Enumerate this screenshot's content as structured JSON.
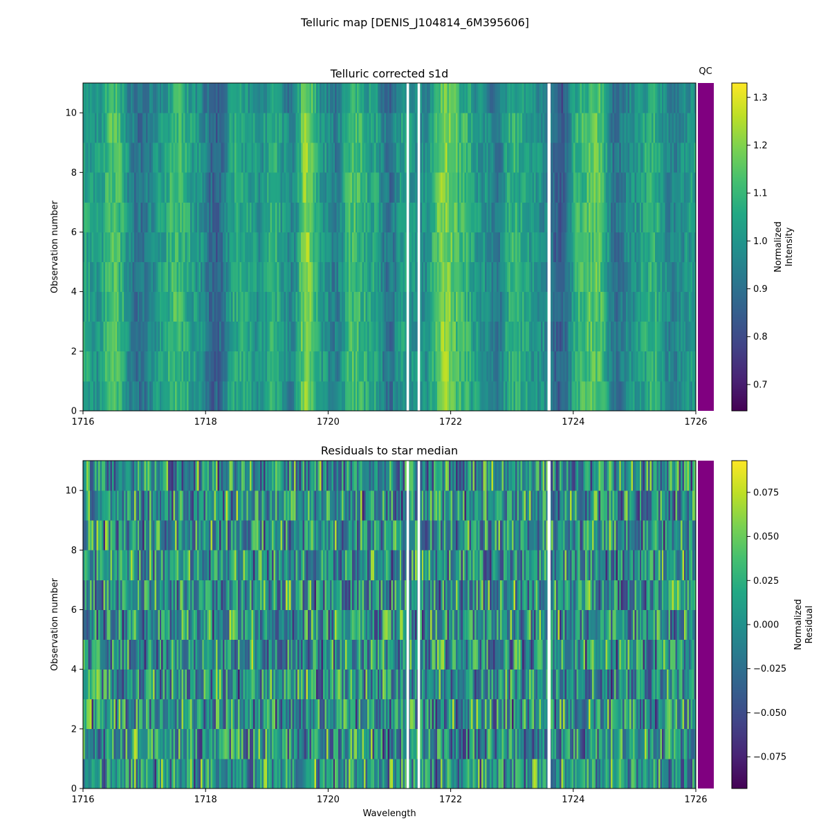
{
  "figure": {
    "title": "Telluric map [DENIS_J104814_6M395606]"
  },
  "chart_data": [
    {
      "type": "heatmap",
      "title": "Telluric corrected s1d",
      "xlabel": "",
      "ylabel": "Observation number",
      "xlim": [
        1716,
        1726
      ],
      "ylim": [
        0,
        11
      ],
      "xticks": [
        "1716",
        "1718",
        "1720",
        "1722",
        "1724",
        "1726"
      ],
      "yticks": [
        "0",
        "2",
        "4",
        "6",
        "8",
        "10"
      ],
      "rows": 11,
      "colorbar": {
        "label_lines": [
          "Normalized",
          "Intensity"
        ],
        "range": [
          0.645,
          1.33
        ],
        "ticks": [
          "0.7",
          "0.8",
          "0.9",
          "1.0",
          "1.1",
          "1.2",
          "1.3"
        ],
        "tick_values": [
          0.7,
          0.8,
          0.9,
          1.0,
          1.1,
          1.2,
          1.3
        ],
        "colormap": "viridis"
      },
      "qc_label": "QC",
      "qc_color": "#800080",
      "gaps": [
        [
          1721.28,
          1721.32
        ],
        [
          1721.46,
          1721.5
        ],
        [
          1723.58,
          1723.63
        ]
      ],
      "band_profile": [
        [
          1716.0,
          1.06
        ],
        [
          1716.2,
          1.0
        ],
        [
          1716.5,
          1.14
        ],
        [
          1716.9,
          0.9
        ],
        [
          1717.3,
          1.02
        ],
        [
          1717.5,
          1.12
        ],
        [
          1717.9,
          1.0
        ],
        [
          1718.15,
          0.85
        ],
        [
          1718.5,
          1.06
        ],
        [
          1718.9,
          1.0
        ],
        [
          1719.1,
          1.08
        ],
        [
          1719.4,
          0.95
        ],
        [
          1719.65,
          1.2
        ],
        [
          1719.9,
          1.02
        ],
        [
          1720.1,
          0.93
        ],
        [
          1720.4,
          1.12
        ],
        [
          1720.75,
          1.04
        ],
        [
          1721.0,
          0.9
        ],
        [
          1721.2,
          1.02
        ],
        [
          1721.55,
          0.98
        ],
        [
          1721.9,
          1.2
        ],
        [
          1722.2,
          1.1
        ],
        [
          1722.5,
          1.0
        ],
        [
          1722.75,
          0.92
        ],
        [
          1723.0,
          1.08
        ],
        [
          1723.4,
          1.0
        ],
        [
          1723.8,
          0.85
        ],
        [
          1724.1,
          1.1
        ],
        [
          1724.4,
          1.15
        ],
        [
          1724.7,
          0.9
        ],
        [
          1725.0,
          1.0
        ],
        [
          1725.3,
          1.08
        ],
        [
          1725.6,
          0.95
        ],
        [
          1726.0,
          1.02
        ]
      ]
    },
    {
      "type": "heatmap",
      "title": "Residuals to star median",
      "xlabel": "Wavelength",
      "ylabel": "Observation number",
      "xlim": [
        1716,
        1726
      ],
      "ylim": [
        0,
        11
      ],
      "xticks": [
        "1716",
        "1718",
        "1720",
        "1722",
        "1724",
        "1726"
      ],
      "yticks": [
        "0",
        "2",
        "4",
        "6",
        "8",
        "10"
      ],
      "rows": 11,
      "colorbar": {
        "label_lines": [
          "Normalized",
          "Residual"
        ],
        "range": [
          -0.093,
          0.093
        ],
        "ticks": [
          "−0.075",
          "−0.050",
          "−0.025",
          "0.000",
          "0.025",
          "0.050",
          "0.075"
        ],
        "tick_values": [
          -0.075,
          -0.05,
          -0.025,
          0.0,
          0.025,
          0.05,
          0.075
        ],
        "colormap": "viridis"
      },
      "qc_color": "#800080",
      "gaps": [
        [
          1721.28,
          1721.32
        ],
        [
          1721.46,
          1721.5
        ],
        [
          1723.58,
          1723.63
        ]
      ]
    }
  ]
}
